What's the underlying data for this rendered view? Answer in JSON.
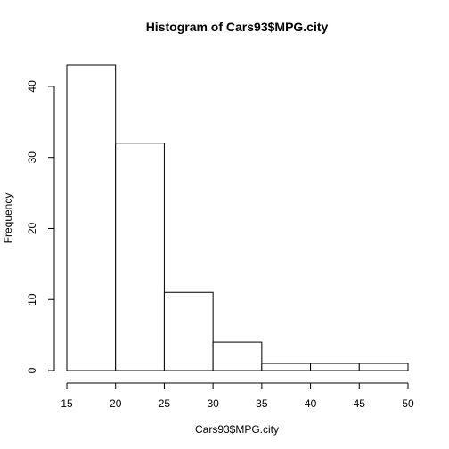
{
  "chart_data": {
    "type": "bar",
    "title": "Histogram of Cars93$MPG.city",
    "xlabel": "Cars93$MPG.city",
    "ylabel": "Frequency",
    "bins": [
      {
        "from": 15,
        "to": 20,
        "count": 43
      },
      {
        "from": 20,
        "to": 25,
        "count": 32
      },
      {
        "from": 25,
        "to": 30,
        "count": 11
      },
      {
        "from": 30,
        "to": 35,
        "count": 4
      },
      {
        "from": 35,
        "to": 40,
        "count": 1
      },
      {
        "from": 40,
        "to": 45,
        "count": 1
      },
      {
        "from": 45,
        "to": 50,
        "count": 1
      }
    ],
    "xlim": [
      15,
      50
    ],
    "ylim": [
      0,
      43
    ],
    "xticks": [
      15,
      20,
      25,
      30,
      35,
      40,
      45,
      50
    ],
    "yticks": [
      0,
      10,
      20,
      30,
      40
    ],
    "grid": false,
    "legend": "none"
  }
}
